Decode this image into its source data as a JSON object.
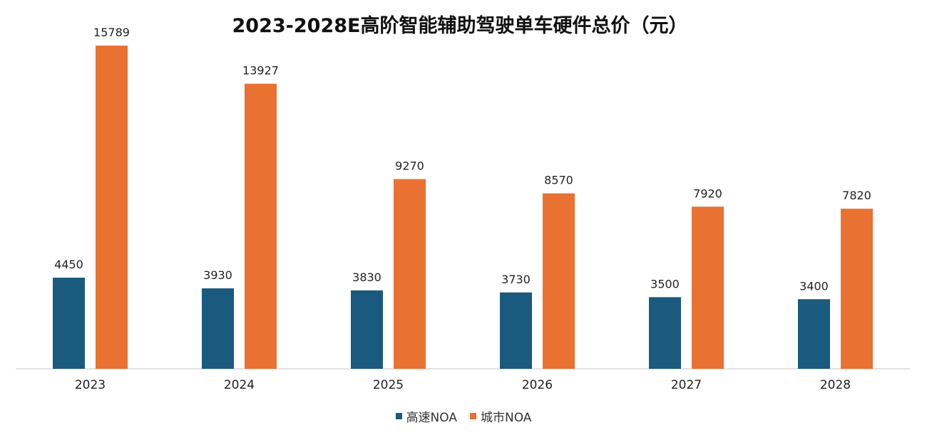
{
  "chart_data": {
    "type": "bar",
    "title": "2023-2028E高阶智能辅助驾驶单车硬件总价（元）",
    "categories": [
      "2023",
      "2024",
      "2025",
      "2026",
      "2027",
      "2028"
    ],
    "series": [
      {
        "name": "高速NOA",
        "color": "#1a5a7e",
        "values": [
          4450,
          3930,
          3830,
          3730,
          3500,
          3400
        ]
      },
      {
        "name": "城市NOA",
        "color": "#e97132",
        "values": [
          15789,
          13927,
          9270,
          8570,
          7920,
          7820
        ]
      }
    ],
    "ylim": [
      0,
      16000
    ],
    "grid": false,
    "legend_position": "bottom"
  }
}
